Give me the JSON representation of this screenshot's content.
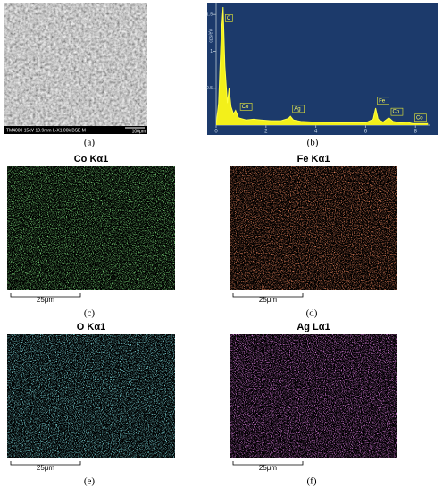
{
  "panels": {
    "a": {
      "caption": "(a)",
      "info": "TM4000 15kV 10.9mm L-X1.00k BSE M",
      "scale": "100μm"
    },
    "b": {
      "caption": "(b)",
      "unit": "cps/eV",
      "xlim": [
        0,
        8.6
      ],
      "xticks": [
        0,
        2,
        4,
        6,
        8
      ],
      "ylim": [
        0,
        1.6
      ],
      "yticks": [
        0.5,
        1,
        1.5
      ],
      "x": [
        0,
        0.1,
        0.2,
        0.28,
        0.35,
        0.45,
        0.52,
        0.6,
        0.7,
        0.78,
        0.9,
        1.2,
        1.5,
        1.8,
        2.2,
        2.6,
        2.9,
        2.98,
        3.1,
        3.4,
        4,
        5,
        6,
        6.3,
        6.4,
        6.5,
        6.7,
        6.93,
        7.1,
        7.4,
        7.65,
        7.9,
        8.5
      ],
      "y": [
        0,
        0.3,
        1.2,
        1.6,
        0.8,
        0.3,
        0.5,
        0.25,
        0.15,
        0.2,
        0.1,
        0.07,
        0.08,
        0.07,
        0.06,
        0.06,
        0.09,
        0.12,
        0.07,
        0.05,
        0.04,
        0.03,
        0.03,
        0.08,
        0.23,
        0.08,
        0.04,
        0.1,
        0.05,
        0.03,
        0.04,
        0.02,
        0.02
      ],
      "peaks": [
        {
          "label": "C",
          "x": 0.3,
          "y": 1.45
        },
        {
          "label": "Co",
          "x": 0.9,
          "y": 0.25
        },
        {
          "label": "Ag",
          "x": 3.0,
          "y": 0.22
        },
        {
          "label": "Fe",
          "x": 6.4,
          "y": 0.33
        },
        {
          "label": "Co",
          "x": 6.95,
          "y": 0.18
        },
        {
          "label": "Co",
          "x": 7.9,
          "y": 0.1
        }
      ]
    },
    "c": {
      "caption": "(c)",
      "title": "Co Kα1",
      "scale": "25μm",
      "color": "#3bd23b"
    },
    "d": {
      "caption": "(d)",
      "title": "Fe Kα1",
      "scale": "25μm",
      "color": "#e0401e"
    },
    "e": {
      "caption": "(e)",
      "title": "O Kα1",
      "scale": "25μm",
      "color": "#3fd6e0"
    },
    "f": {
      "caption": "(f)",
      "title": "Ag Lα1",
      "scale": "25μm",
      "color": "#d23ce0"
    }
  }
}
